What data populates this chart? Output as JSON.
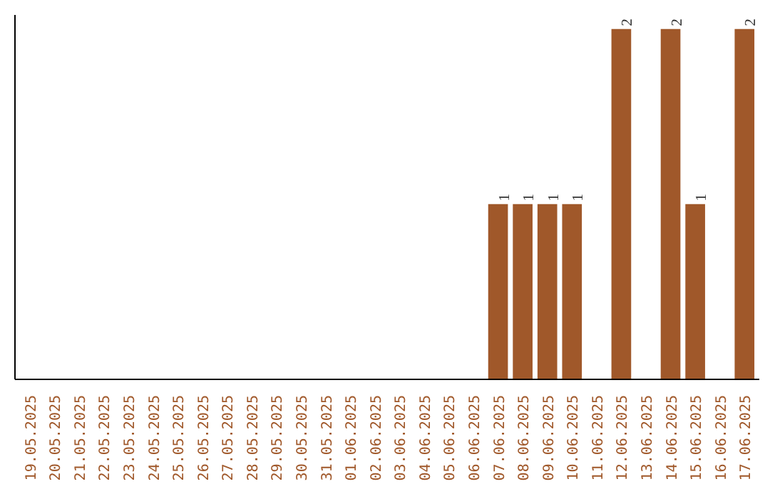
{
  "chart_data": {
    "type": "bar",
    "categories": [
      "19.05.2025",
      "20.05.2025",
      "21.05.2025",
      "22.05.2025",
      "23.05.2025",
      "24.05.2025",
      "25.05.2025",
      "26.05.2025",
      "27.05.2025",
      "28.05.2025",
      "29.05.2025",
      "30.05.2025",
      "31.05.2025",
      "01.06.2025",
      "02.06.2025",
      "03.06.2025",
      "04.06.2025",
      "05.06.2025",
      "06.06.2025",
      "07.06.2025",
      "08.06.2025",
      "09.06.2025",
      "10.06.2025",
      "11.06.2025",
      "12.06.2025",
      "13.06.2025",
      "14.06.2025",
      "15.06.2025",
      "16.06.2025",
      "17.06.2025"
    ],
    "values": [
      null,
      null,
      null,
      null,
      null,
      null,
      null,
      null,
      null,
      null,
      null,
      null,
      null,
      null,
      null,
      null,
      null,
      null,
      null,
      1,
      1,
      1,
      1,
      null,
      2,
      null,
      2,
      1,
      null,
      2
    ],
    "value_labels": [
      null,
      null,
      null,
      null,
      null,
      null,
      null,
      null,
      null,
      null,
      null,
      null,
      null,
      null,
      null,
      null,
      null,
      null,
      null,
      "1",
      "1",
      "1",
      "1",
      null,
      "2",
      null,
      "2",
      "1",
      null,
      "2"
    ],
    "color": "#a0582a",
    "tick_labels": "x",
    "grid": false
  }
}
